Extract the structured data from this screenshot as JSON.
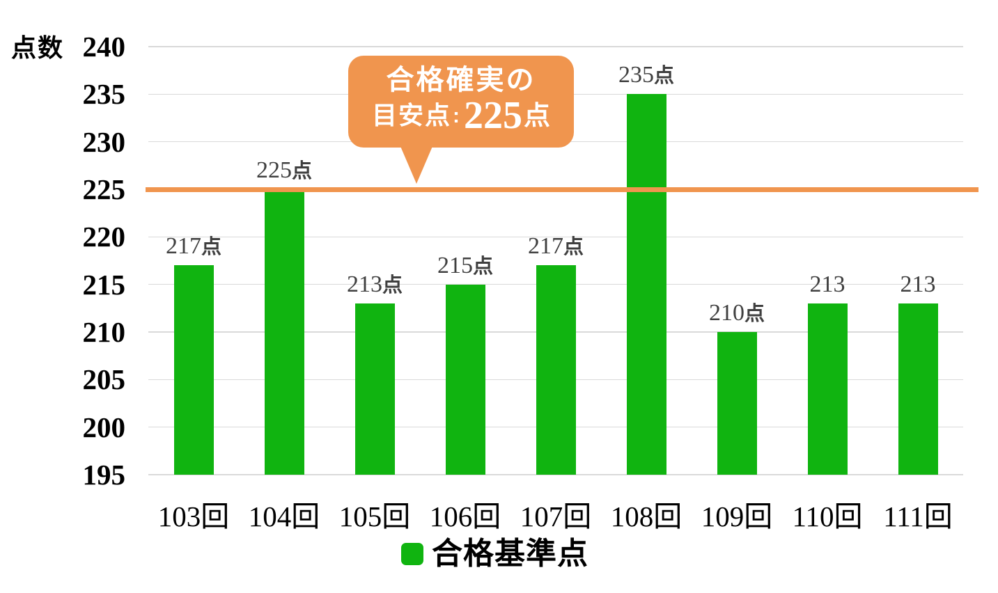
{
  "y_axis_title": "点数",
  "legend": {
    "label": "合格基準点"
  },
  "annotation": {
    "line1": "合格確実の",
    "line2_prefix": "目安点",
    "line2_colon": ":",
    "line2_value": "225",
    "line2_suffix": "点"
  },
  "colors": {
    "bar_green": "#10B410",
    "accent_orange": "#F0954E",
    "gridline": "#D9D9D9",
    "data_label": "#3F3F3F",
    "axis_text": "#000000",
    "callout_text": "#FFFFFF"
  },
  "chart_data": {
    "type": "bar",
    "title": "",
    "categories": [
      "103回",
      "104回",
      "105回",
      "106回",
      "107回",
      "108回",
      "109回",
      "110回",
      "111回"
    ],
    "series": [
      {
        "name": "合格基準点",
        "values": [
          217,
          225,
          213,
          215,
          217,
          235,
          210,
          213,
          213
        ]
      }
    ],
    "data_labels": [
      {
        "num": "217",
        "suffix": "点"
      },
      {
        "num": "225",
        "suffix": "点"
      },
      {
        "num": "213",
        "suffix": "点"
      },
      {
        "num": "215",
        "suffix": "点"
      },
      {
        "num": "217",
        "suffix": "点"
      },
      {
        "num": "235",
        "suffix": "点"
      },
      {
        "num": "210",
        "suffix": "点"
      },
      {
        "num": "213",
        "suffix": ""
      },
      {
        "num": "213",
        "suffix": ""
      }
    ],
    "xlabel": "",
    "ylabel": "点数",
    "ylim": [
      195,
      240
    ],
    "ytick_step": 5,
    "grid": true,
    "legend_position": "bottom",
    "reference_line": {
      "value": 225,
      "label": "合格確実の目安点:225点"
    }
  }
}
